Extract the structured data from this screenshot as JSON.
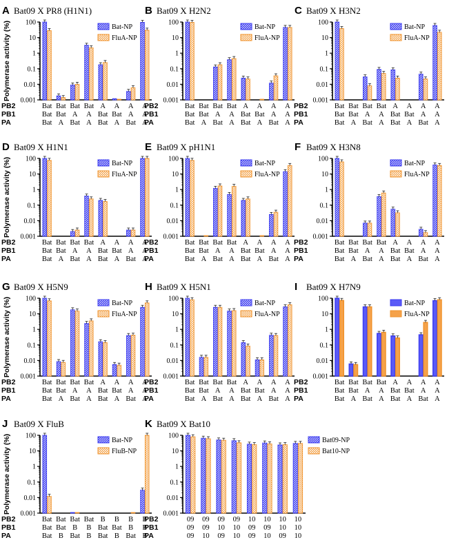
{
  "figure": {
    "y_axis_label": "Polymerase activity (%)",
    "y_ticks": [
      "100",
      "10",
      "1",
      "0.1",
      "0.01",
      "0.001"
    ],
    "colors": {
      "series_a": "#3b3bf0",
      "series_b": "#f0922a",
      "axis": "#000000"
    }
  },
  "chart_data": [
    {
      "panel": "A",
      "title": "Bat09 X PR8 (H1N1)",
      "type": "bar",
      "yscale": "log",
      "ylim": [
        0.001,
        100
      ],
      "row_labels": [
        "PB2",
        "PB1",
        "PA"
      ],
      "categories": [
        [
          "Bat",
          "Bat",
          "Bat"
        ],
        [
          "Bat",
          "Bat",
          "A"
        ],
        [
          "Bat",
          "A",
          "Bat"
        ],
        [
          "Bat",
          "A",
          "A"
        ],
        [
          "A",
          "Bat",
          "Bat"
        ],
        [
          "A",
          "Bat",
          "A"
        ],
        [
          "A",
          "A",
          "Bat"
        ],
        [
          "A",
          "A",
          "A"
        ]
      ],
      "series": [
        {
          "name": "Bat-NP",
          "values": [
            100,
            0.0018,
            0.009,
            3.2,
            0.18,
            0.0012,
            0.0035,
            95
          ]
        },
        {
          "name": "FluA-NP",
          "values": [
            28,
            0.0014,
            0.01,
            2.2,
            0.25,
            0.0011,
            0.006,
            30
          ]
        }
      ]
    },
    {
      "panel": "B",
      "title": "Bat09 X H2N2",
      "type": "bar",
      "yscale": "log",
      "ylim": [
        0.001,
        100
      ],
      "row_labels": [
        "PB2",
        "PB1",
        "PA"
      ],
      "categories": [
        [
          "Bat",
          "Bat",
          "Bat"
        ],
        [
          "Bat",
          "Bat",
          "A"
        ],
        [
          "Bat",
          "A",
          "Bat"
        ],
        [
          "Bat",
          "A",
          "A"
        ],
        [
          "A",
          "Bat",
          "Bat"
        ],
        [
          "A",
          "Bat",
          "A"
        ],
        [
          "A",
          "A",
          "Bat"
        ],
        [
          "A",
          "A",
          "A"
        ]
      ],
      "series": [
        {
          "name": "Bat-NP",
          "values": [
            100,
            null,
            0.13,
            0.38,
            0.025,
            null,
            0.012,
            45
          ]
        },
        {
          "name": "FluA-NP",
          "values": [
            95,
            null,
            0.18,
            0.45,
            0.022,
            0.0011,
            0.035,
            45
          ]
        }
      ]
    },
    {
      "panel": "C",
      "title": "Bat09 X H3N2",
      "type": "bar",
      "yscale": "log",
      "ylim": [
        0.001,
        100
      ],
      "row_labels": [
        "PB2",
        "PB1",
        "PA"
      ],
      "categories": [
        [
          "Bat",
          "Bat",
          "Bat"
        ],
        [
          "Bat",
          "Bat",
          "A"
        ],
        [
          "Bat",
          "A",
          "Bat"
        ],
        [
          "Bat",
          "A",
          "A"
        ],
        [
          "A",
          "Bat",
          "Bat"
        ],
        [
          "A",
          "Bat",
          "A"
        ],
        [
          "A",
          "A",
          "Bat"
        ],
        [
          "A",
          "A",
          "A"
        ]
      ],
      "series": [
        {
          "name": "Bat-NP",
          "values": [
            100,
            null,
            0.03,
            0.09,
            0.085,
            null,
            0.045,
            60
          ]
        },
        {
          "name": "FluA-NP",
          "values": [
            38,
            null,
            0.008,
            0.05,
            0.025,
            null,
            0.022,
            22
          ]
        }
      ]
    },
    {
      "panel": "D",
      "title": "Bat09 X H1N1",
      "type": "bar",
      "yscale": "log",
      "ylim": [
        0.001,
        100
      ],
      "row_labels": [
        "PB2",
        "PB1",
        "PA"
      ],
      "categories": [
        [
          "Bat",
          "Bat",
          "Bat"
        ],
        [
          "Bat",
          "Bat",
          "A"
        ],
        [
          "Bat",
          "A",
          "Bat"
        ],
        [
          "Bat",
          "A",
          "A"
        ],
        [
          "A",
          "Bat",
          "Bat"
        ],
        [
          "A",
          "Bat",
          "A"
        ],
        [
          "A",
          "A",
          "Bat"
        ],
        [
          "A",
          "A",
          "A"
        ]
      ],
      "series": [
        {
          "name": "Bat-NP",
          "values": [
            100,
            null,
            0.002,
            0.38,
            0.2,
            null,
            0.0025,
            100
          ]
        },
        {
          "name": "FluA-NP",
          "values": [
            75,
            null,
            0.0025,
            0.25,
            0.17,
            null,
            0.0025,
            100
          ]
        }
      ]
    },
    {
      "panel": "E",
      "title": "Bat09 X pH1N1",
      "type": "bar",
      "yscale": "log",
      "ylim": [
        0.001,
        100
      ],
      "row_labels": [
        "PB2",
        "PB1",
        "PA"
      ],
      "categories": [
        [
          "Bat",
          "Bat",
          "Bat"
        ],
        [
          "Bat",
          "Bat",
          "A"
        ],
        [
          "Bat",
          "A",
          "Bat"
        ],
        [
          "Bat",
          "A",
          "A"
        ],
        [
          "A",
          "Bat",
          "Bat"
        ],
        [
          "A",
          "Bat",
          "A"
        ],
        [
          "A",
          "A",
          "Bat"
        ],
        [
          "A",
          "A",
          "A"
        ]
      ],
      "series": [
        {
          "name": "Bat-NP",
          "values": [
            100,
            null,
            1.2,
            0.48,
            0.2,
            null,
            0.025,
            14
          ]
        },
        {
          "name": "FluA-NP",
          "values": [
            75,
            0.0011,
            1.7,
            1.6,
            0.25,
            0.0011,
            0.035,
            35
          ]
        }
      ]
    },
    {
      "panel": "F",
      "title": "Bat09 X H3N8",
      "type": "bar",
      "yscale": "log",
      "ylim": [
        0.001,
        100
      ],
      "row_labels": [
        "PB2",
        "PB1",
        "PA"
      ],
      "categories": [
        [
          "Bat",
          "Bat",
          "Bat"
        ],
        [
          "Bat",
          "Bat",
          "A"
        ],
        [
          "Bat",
          "A",
          "Bat"
        ],
        [
          "Bat",
          "A",
          "A"
        ],
        [
          "A",
          "Bat",
          "Bat"
        ],
        [
          "A",
          "Bat",
          "A"
        ],
        [
          "A",
          "A",
          "Bat"
        ],
        [
          "A",
          "A",
          "A"
        ]
      ],
      "series": [
        {
          "name": "Bat-NP",
          "values": [
            100,
            null,
            0.007,
            0.35,
            0.055,
            null,
            0.0028,
            38
          ]
        },
        {
          "name": "FluA-NP",
          "values": [
            60,
            null,
            0.007,
            0.6,
            0.032,
            null,
            0.0017,
            35
          ]
        }
      ]
    },
    {
      "panel": "G",
      "title": "Bat09 X H5N9",
      "type": "bar",
      "yscale": "log",
      "ylim": [
        0.001,
        100
      ],
      "row_labels": [
        "PB2",
        "PB1",
        "PA"
      ],
      "categories": [
        [
          "Bat",
          "Bat",
          "Bat"
        ],
        [
          "Bat",
          "Bat",
          "A"
        ],
        [
          "Bat",
          "A",
          "Bat"
        ],
        [
          "Bat",
          "A",
          "A"
        ],
        [
          "A",
          "Bat",
          "Bat"
        ],
        [
          "A",
          "Bat",
          "A"
        ],
        [
          "A",
          "A",
          "Bat"
        ],
        [
          "A",
          "A",
          "A"
        ]
      ],
      "series": [
        {
          "name": "Bat-NP",
          "values": [
            100,
            0.0085,
            18,
            2.4,
            0.16,
            0.0055,
            0.4,
            26
          ]
        },
        {
          "name": "FluA-NP",
          "values": [
            68,
            0.0075,
            15,
            3.5,
            0.14,
            0.005,
            0.42,
            50
          ]
        }
      ]
    },
    {
      "panel": "H",
      "title": "Bat09 X H5N1",
      "type": "bar",
      "yscale": "log",
      "ylim": [
        0.001,
        100
      ],
      "row_labels": [
        "PB2",
        "PB1",
        "PA"
      ],
      "categories": [
        [
          "Bat",
          "Bat",
          "Bat"
        ],
        [
          "Bat",
          "Bat",
          "A"
        ],
        [
          "Bat",
          "A",
          "Bat"
        ],
        [
          "Bat",
          "A",
          "A"
        ],
        [
          "A",
          "Bat",
          "Bat"
        ],
        [
          "A",
          "Bat",
          "A"
        ],
        [
          "A",
          "A",
          "Bat"
        ],
        [
          "A",
          "A",
          "A"
        ]
      ],
      "series": [
        {
          "name": "Bat-NP",
          "values": [
            100,
            0.016,
            26,
            15,
            0.14,
            0.011,
            0.42,
            28
          ]
        },
        {
          "name": "FluA-NP",
          "values": [
            80,
            0.016,
            26,
            16,
            0.085,
            0.011,
            0.4,
            38
          ]
        }
      ]
    },
    {
      "panel": "I",
      "title": "Bat09 X H7N9",
      "type": "bar",
      "yscale": "log",
      "ylim": [
        0.001,
        100
      ],
      "row_labels": [
        "PB2",
        "PB1",
        "PA"
      ],
      "categories": [
        [
          "Bat",
          "Bat",
          "Bat"
        ],
        [
          "Bat",
          "Bat",
          "A"
        ],
        [
          "Bat",
          "A",
          "Bat"
        ],
        [
          "Bat",
          "A",
          "A"
        ],
        [
          "A",
          "Bat",
          "Bat"
        ],
        [
          "A",
          "Bat",
          "A"
        ],
        [
          "A",
          "A",
          "Bat"
        ],
        [
          "A",
          "A",
          "A"
        ]
      ],
      "series": [
        {
          "name": "Bat-NP",
          "values": [
            100,
            0.006,
            28,
            0.55,
            0.38,
            null,
            0.45,
            70
          ]
        },
        {
          "name": "FluA-NP",
          "values": [
            72,
            0.0055,
            28,
            0.65,
            0.28,
            null,
            2.8,
            80
          ]
        }
      ]
    },
    {
      "panel": "J",
      "title": "Bat09 X FluB",
      "type": "bar",
      "yscale": "log",
      "ylim": [
        0.001,
        100
      ],
      "row_labels": [
        "PB2",
        "PB1",
        "PA"
      ],
      "categories": [
        [
          "Bat",
          "Bat",
          "Bat"
        ],
        [
          "Bat",
          "Bat",
          "B"
        ],
        [
          "Bat",
          "B",
          "Bat"
        ],
        [
          "Bat",
          "B",
          "B"
        ],
        [
          "B",
          "Bat",
          "Bat"
        ],
        [
          "B",
          "Bat",
          "B"
        ],
        [
          "B",
          "B",
          "Bat"
        ],
        [
          "B",
          "B",
          "B"
        ]
      ],
      "series": [
        {
          "name": "Bat-NP",
          "values": [
            100,
            null,
            0.0011,
            null,
            null,
            null,
            null,
            0.03
          ]
        },
        {
          "name": "FluB-NP",
          "values": [
            0.012,
            null,
            0.0011,
            null,
            null,
            null,
            0.0011,
            100
          ]
        }
      ]
    },
    {
      "panel": "K",
      "title": "Bat09 X Bat10",
      "type": "bar",
      "yscale": "log",
      "ylim": [
        0.001,
        100
      ],
      "row_labels": [
        "PB2",
        "PB1",
        "PA"
      ],
      "categories": [
        [
          "09",
          "09",
          "09"
        ],
        [
          "09",
          "09",
          "10"
        ],
        [
          "09",
          "10",
          "09"
        ],
        [
          "09",
          "10",
          "10"
        ],
        [
          "10",
          "09",
          "09"
        ],
        [
          "10",
          "09",
          "10"
        ],
        [
          "10",
          "10",
          "09"
        ],
        [
          "10",
          "10",
          "10"
        ]
      ],
      "series": [
        {
          "name": "Bat09-NP",
          "values": [
            100,
            65,
            50,
            45,
            27,
            32,
            24,
            30
          ]
        },
        {
          "name": "Bat10-NP",
          "values": [
            80,
            60,
            48,
            33,
            25,
            28,
            25,
            30
          ]
        }
      ]
    }
  ]
}
